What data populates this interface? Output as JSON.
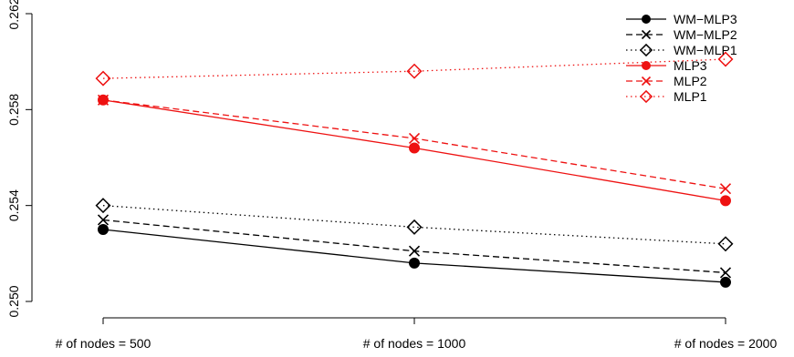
{
  "chart_data": {
    "type": "line",
    "title": "",
    "xlabel": "",
    "ylabel": "",
    "categories": [
      "# of nodes = 500",
      "# of nodes = 1000",
      "# of nodes = 2000"
    ],
    "ylim": [
      0.25,
      0.262
    ],
    "yticks": [
      0.25,
      0.254,
      0.258,
      0.262
    ],
    "ytick_labels": [
      "0.250",
      "0.254",
      "0.258",
      "0.262"
    ],
    "grid": false,
    "legend_position": "top-right",
    "series": [
      {
        "name": "WM−MLP3",
        "values": [
          0.253,
          0.2516,
          0.2508
        ],
        "color": "#000000",
        "dash": "solid",
        "marker": "filled-circle"
      },
      {
        "name": "WM−MLP2",
        "values": [
          0.2534,
          0.2521,
          0.2512
        ],
        "color": "#000000",
        "dash": "dashed",
        "marker": "cross"
      },
      {
        "name": "WM−MLP1",
        "values": [
          0.254,
          0.2531,
          0.2524
        ],
        "color": "#000000",
        "dash": "dotted",
        "marker": "diamond"
      },
      {
        "name": "MLP3",
        "values": [
          0.2584,
          0.2564,
          0.2542
        ],
        "color": "#ee1111",
        "dash": "solid",
        "marker": "filled-circle"
      },
      {
        "name": "MLP2",
        "values": [
          0.2584,
          0.2568,
          0.2547
        ],
        "color": "#ee1111",
        "dash": "dashed",
        "marker": "cross"
      },
      {
        "name": "MLP1",
        "values": [
          0.2593,
          0.2596,
          0.2601
        ],
        "color": "#ee1111",
        "dash": "dotted",
        "marker": "diamond"
      }
    ]
  }
}
